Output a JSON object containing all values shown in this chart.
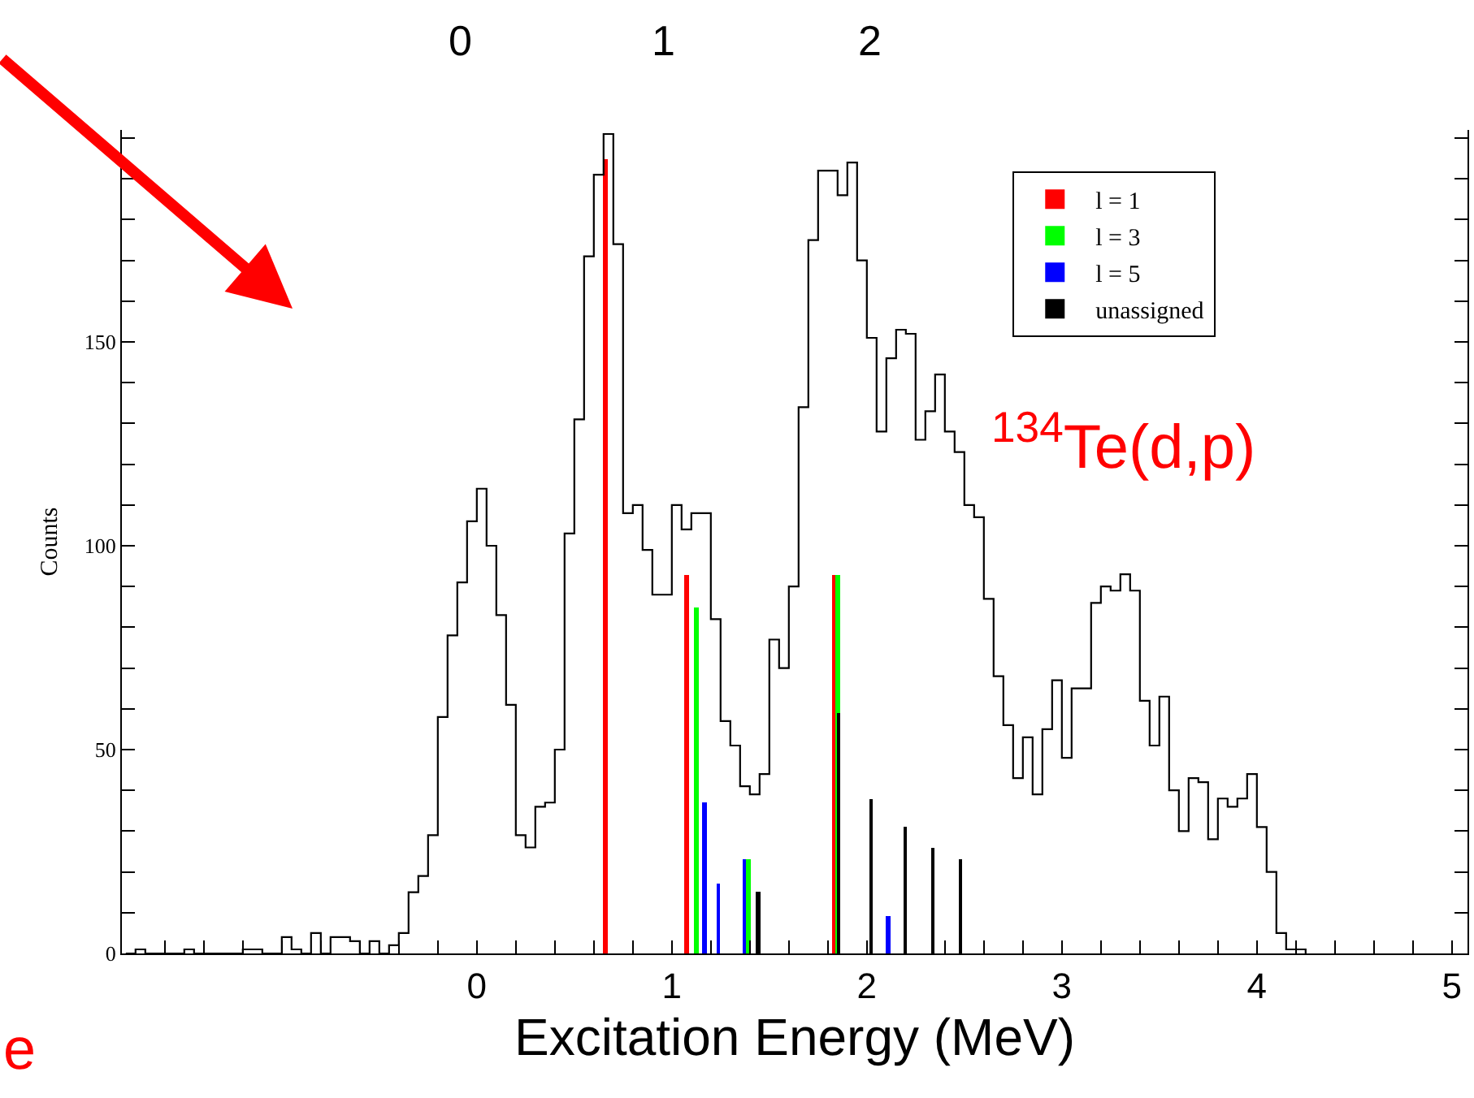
{
  "chart_data": {
    "type": "histogram",
    "xlabel": "Excitation Energy (MeV)",
    "ylabel": "Counts",
    "bins": [
      -1.8,
      -1.75,
      -1.7,
      -1.65,
      -1.6,
      -1.55,
      -1.5,
      -1.45,
      -1.4,
      -1.35,
      -1.3,
      -1.25,
      -1.2,
      -1.15,
      -1.1,
      -1.05,
      -1.0,
      -0.95,
      -0.9,
      -0.85,
      -0.8,
      -0.75,
      -0.7,
      -0.65,
      -0.6,
      -0.55,
      -0.5,
      -0.45,
      -0.4,
      -0.35,
      -0.3,
      -0.25,
      -0.2,
      -0.15,
      -0.1,
      -0.05,
      0,
      0.05,
      0.1,
      0.15,
      0.2,
      0.25,
      0.3,
      0.35,
      0.4,
      0.45,
      0.5,
      0.55,
      0.6,
      0.65,
      0.7,
      0.75,
      0.8,
      0.85,
      0.9,
      0.95,
      1.0,
      1.05,
      1.1,
      1.15,
      1.2,
      1.25,
      1.3,
      1.35,
      1.4,
      1.45,
      1.5,
      1.55,
      1.6,
      1.65,
      1.7,
      1.75,
      1.8,
      1.85,
      1.9,
      1.95,
      2.0,
      2.05,
      2.1,
      2.15,
      2.2,
      2.25,
      2.3,
      2.35,
      2.4,
      2.45,
      2.5,
      2.55,
      2.6,
      2.65,
      2.7,
      2.75,
      2.8,
      2.85,
      2.9,
      2.95,
      3.0,
      3.05,
      3.1,
      3.15,
      3.2,
      3.25,
      3.3,
      3.35,
      3.4,
      3.45,
      3.5,
      3.55,
      3.6,
      3.65,
      3.7,
      3.75,
      3.8,
      3.85,
      3.9,
      3.95,
      4.0,
      4.05,
      4.1,
      4.15,
      4.2,
      4.25
    ],
    "values": [
      0,
      1,
      0,
      0,
      0,
      0,
      1,
      0,
      0,
      0,
      0,
      0,
      1,
      1,
      0,
      0,
      4,
      1,
      0,
      5,
      0,
      4,
      4,
      3,
      0,
      3,
      0,
      2,
      5,
      15,
      19,
      29,
      58,
      78,
      91,
      106,
      114,
      100,
      83,
      61,
      29,
      26,
      36,
      37,
      50,
      103,
      131,
      171,
      191,
      201,
      174,
      108,
      110,
      99,
      88,
      88,
      110,
      104,
      108,
      108,
      82,
      57,
      51,
      41,
      39,
      44,
      77,
      70,
      90,
      134,
      175,
      192,
      192,
      186,
      194,
      170,
      151,
      128,
      146,
      153,
      152,
      126,
      133,
      142,
      128,
      123,
      110,
      107,
      87,
      68,
      56,
      43,
      53,
      39,
      55,
      67,
      48,
      65,
      65,
      86,
      90,
      89,
      93,
      89,
      62,
      51,
      63,
      40,
      30,
      43,
      42,
      28,
      38,
      36,
      38,
      44,
      31,
      20,
      5,
      1,
      1
    ],
    "color": "#000000",
    "series": [
      {
        "type": "bar",
        "name": "l = 1",
        "color": "#ff0000",
        "x": [
          0.656,
          1.075,
          1.837
        ],
        "values": [
          195,
          93,
          93
        ]
      },
      {
        "type": "bar",
        "name": "l = 3",
        "color": "#00ff00",
        "x": [
          1.125
        ],
        "values": [
          85
        ]
      },
      {
        "type": "bar",
        "name": "l = 5",
        "color": "#0000ff",
        "x": [
          1.167,
          1.24,
          1.375,
          2.108
        ],
        "values": [
          37,
          17,
          23,
          9
        ]
      },
      {
        "type": "bar",
        "color": "#00ff00",
        "x": [
          1.375,
          1.837
        ],
        "values": [
          23,
          93
        ]
      },
      {
        "type": "bar",
        "name": "unassigned",
        "color": "#000000",
        "x": [
          1.441,
          1.857,
          2.021,
          2.197,
          2.34,
          2.481
        ],
        "values": [
          15,
          59,
          38,
          31,
          26,
          23
        ]
      }
    ],
    "xlim": [
      -1.82,
      5.08
    ],
    "xticks": [
      {
        "value": -1.6,
        "label": null
      },
      {
        "value": -1.4,
        "label": null
      },
      {
        "value": -1.2,
        "label": null
      },
      {
        "value": -1.0,
        "label": null
      },
      {
        "value": -0.8,
        "label": null
      },
      {
        "value": -0.6,
        "label": null
      },
      {
        "value": -0.4,
        "label": null
      },
      {
        "value": -0.2,
        "label": null
      },
      0,
      {
        "value": 0.2,
        "label": null
      },
      {
        "value": 0.4,
        "label": null
      },
      {
        "value": 0.6,
        "label": null
      },
      {
        "value": 0.8,
        "label": null
      },
      1,
      {
        "value": 1.2,
        "label": null
      },
      {
        "value": 1.4,
        "label": null
      },
      {
        "value": 1.6,
        "label": null
      },
      {
        "value": 1.8,
        "label": null
      },
      2,
      {
        "value": 2.2,
        "label": null
      },
      {
        "value": 2.4,
        "label": null
      },
      {
        "value": 2.6,
        "label": null
      },
      {
        "value": 2.8,
        "label": null
      },
      3,
      {
        "value": 3.2,
        "label": null
      },
      {
        "value": 3.4,
        "label": null
      },
      {
        "value": 3.6,
        "label": null
      },
      {
        "value": 3.8,
        "label": null
      },
      4,
      {
        "value": 4.2,
        "label": null
      },
      {
        "value": 4.4,
        "label": null
      },
      {
        "value": 4.6,
        "label": null
      },
      {
        "value": 4.8,
        "label": null
      },
      5
    ],
    "ylim": [
      0,
      202
    ],
    "yticks": [
      0,
      {
        "value": 10,
        "label": null
      },
      {
        "value": 20,
        "label": null
      },
      {
        "value": 30,
        "label": null
      },
      {
        "value": 40,
        "label": null
      },
      50,
      {
        "value": 60,
        "label": null
      },
      {
        "value": 70,
        "label": null
      },
      {
        "value": 80,
        "label": null
      },
      {
        "value": 90,
        "label": null
      },
      100,
      {
        "value": 110,
        "label": null
      },
      {
        "value": 120,
        "label": null
      },
      {
        "value": 130,
        "label": null
      },
      {
        "value": 140,
        "label": null
      },
      150,
      {
        "value": 160,
        "label": null
      },
      {
        "value": 170,
        "label": null
      },
      {
        "value": 180,
        "label": null
      },
      {
        "value": 190,
        "label": null
      },
      {
        "value": 200,
        "label": null
      }
    ],
    "legend": "top right",
    "annotations": [
      "$^{134}$Te(d,p)",
      "0",
      "1",
      "2",
      "e"
    ]
  }
}
